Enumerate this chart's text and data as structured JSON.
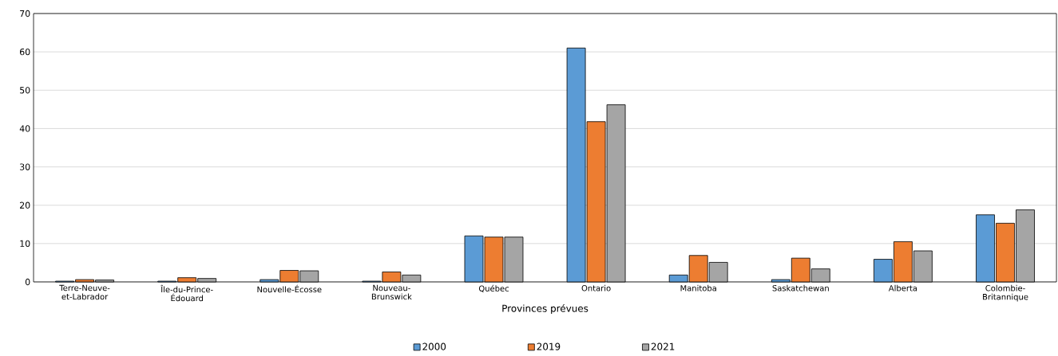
{
  "chart_data": {
    "type": "bar",
    "xlabel": "Provinces prévues",
    "categories": [
      "Terre-Neuve-et-Labrador",
      "Île-du-Prince-Édouard",
      "Nouvelle-Écosse",
      "Nouveau-Brunswick",
      "Québec",
      "Ontario",
      "Manitoba",
      "Saskatchewan",
      "Alberta",
      "Colombie-Britannique"
    ],
    "series": [
      {
        "name": "2000",
        "color": "#5b9bd5",
        "values": [
          0.2,
          0.2,
          0.6,
          0.2,
          12.0,
          61.0,
          1.8,
          0.6,
          5.9,
          17.5
        ]
      },
      {
        "name": "2019",
        "color": "#ed7d31",
        "values": [
          0.6,
          1.1,
          3.0,
          2.6,
          11.7,
          41.8,
          6.9,
          6.2,
          10.5,
          15.3
        ]
      },
      {
        "name": "2021",
        "color": "#a5a5a5",
        "values": [
          0.5,
          0.9,
          2.9,
          1.8,
          11.7,
          46.2,
          5.1,
          3.4,
          8.1,
          18.8
        ]
      }
    ],
    "ylim": [
      0,
      70
    ],
    "yticks": [
      0,
      10,
      20,
      30,
      40,
      50,
      60,
      70
    ],
    "grid": "y",
    "legend": "bottom"
  }
}
